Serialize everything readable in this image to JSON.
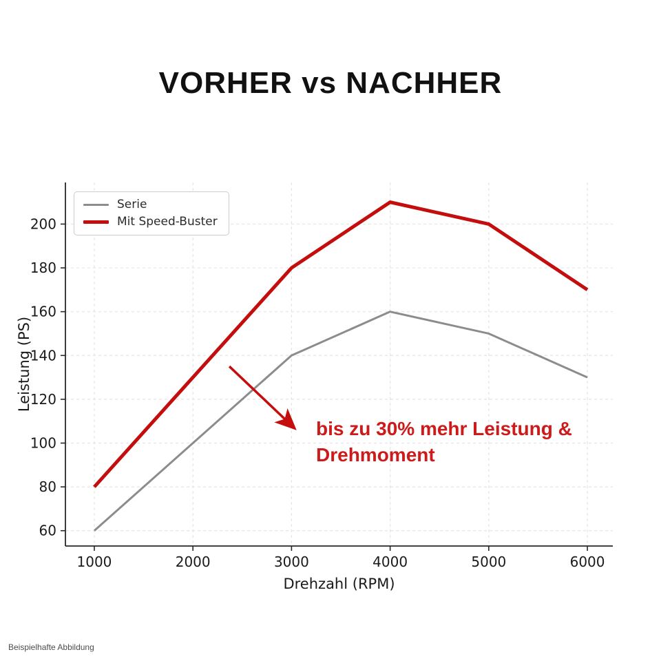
{
  "title": "VORHER vs NACHHER",
  "footer": {
    "note": "Beispielhafte Abbildung"
  },
  "annotation": {
    "line1": "bis zu 30% mehr Leistung &",
    "line2": "Drehmoment",
    "color": "#cd1a1a",
    "arrow": {
      "from_x": 2370,
      "from_y": 135,
      "to_x": 3025,
      "to_y": 107,
      "color": "#c40d0d"
    }
  },
  "chart_data": {
    "type": "line",
    "x": [
      1000,
      2000,
      3000,
      4000,
      5000,
      6000
    ],
    "series": [
      {
        "name": "Serie",
        "values": [
          60,
          100,
          140,
          160,
          150,
          130
        ],
        "color": "#8c8c8c",
        "width": 3
      },
      {
        "name": "Mit Speed-Buster",
        "values": [
          80,
          130,
          180,
          210,
          200,
          170
        ],
        "color": "#c40d0d",
        "width": 5
      }
    ],
    "title": "",
    "xlabel": "Drehzahl (RPM)",
    "ylabel": "Leistung (PS)",
    "x_ticks": [
      1000,
      2000,
      3000,
      4000,
      5000,
      6000
    ],
    "y_ticks": [
      60,
      80,
      100,
      120,
      140,
      160,
      180,
      200
    ],
    "xlim": [
      707,
      6258
    ],
    "ylim": [
      53,
      219
    ],
    "grid": true,
    "grid_color": "#e4e4e4",
    "axis_color": "#262626",
    "tick_label_color": "#1a1a1a",
    "legend_position": "upper left"
  }
}
